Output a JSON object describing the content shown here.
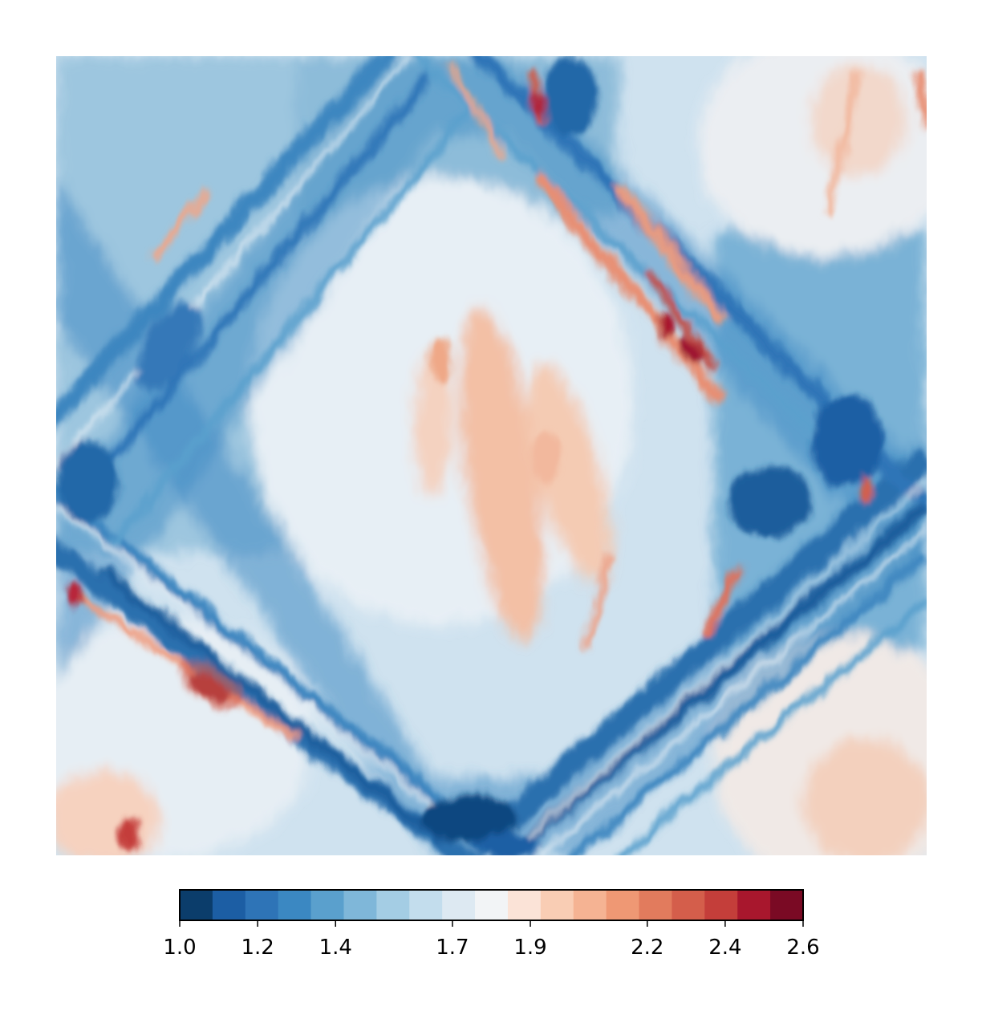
{
  "chart_data": {
    "type": "heatmap",
    "title": "",
    "xlabel": "",
    "ylabel": "",
    "axes_visible": false,
    "colormap": "RdBu_r",
    "levels": 21,
    "value_range": [
      1.0,
      2.6
    ],
    "colorbar": {
      "orientation": "horizontal",
      "placement": "bottom",
      "ticks": [
        1.0,
        1.2,
        1.4,
        1.7,
        1.9,
        2.2,
        2.4,
        2.6
      ],
      "tick_labels": [
        "1.0",
        "1.2",
        "1.4",
        "1.7",
        "1.9",
        "2.2",
        "2.4",
        "2.6"
      ],
      "level_colors": [
        "#0b3d6b",
        "#1c5ea4",
        "#2e74b7",
        "#3b88c2",
        "#5aa0cd",
        "#7fb7d9",
        "#a4cde4",
        "#c3dded",
        "#dde9f2",
        "#f2f4f6",
        "#fbe3d7",
        "#f9cdb4",
        "#f5b393",
        "#ef9874",
        "#e27b5d",
        "#d45e4b",
        "#c43e3a",
        "#a8172d",
        "#7a0a24"
      ]
    },
    "features": [
      {
        "name": "band-ul-br",
        "x": [
          0.0,
          0.48,
          1.0
        ],
        "y": [
          0.8,
          0.0,
          0.55
        ],
        "value": 1.2
      },
      {
        "name": "band-ll-tr",
        "x": [
          0.0,
          0.5,
          1.0
        ],
        "y": [
          0.2,
          1.0,
          0.45
        ],
        "value": 1.2
      },
      {
        "name": "hot-streak-upper-right",
        "x": [
          0.55,
          0.78
        ],
        "y": [
          0.9,
          0.6
        ],
        "value": 2.4
      },
      {
        "name": "hot-spot-lower-left",
        "x": 0.18,
        "y": 0.21,
        "value": 2.6
      },
      {
        "name": "hot-spot-left-edge",
        "x": 0.02,
        "y": 0.32,
        "value": 2.3
      },
      {
        "name": "warm-central-ridge",
        "x": [
          0.47,
          0.52
        ],
        "y": [
          0.65,
          0.35
        ],
        "value": 1.95
      },
      {
        "name": "cold-spot-bottom",
        "x": 0.53,
        "y": 0.05,
        "value": 1.0
      },
      {
        "name": "cold-spot-right",
        "x": 0.9,
        "y": 0.45,
        "value": 1.05
      },
      {
        "name": "warm-right-edge",
        "x": 1.0,
        "y": 0.95,
        "value": 2.2
      }
    ]
  }
}
